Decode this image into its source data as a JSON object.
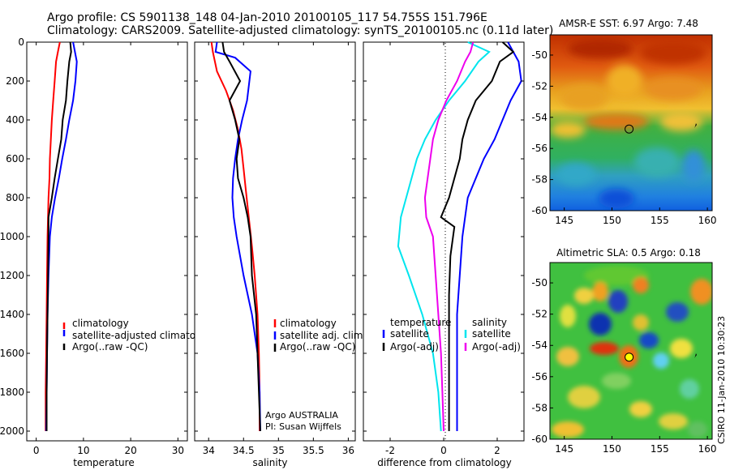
{
  "title_line1": "Argo profile: CS 5901138_148 04-Jan-2010 20100105_117 54.755S 151.796E",
  "title_line2": "Climatology: CARS2009. Satellite-adjusted climatology: synTS_20100105.nc (0.11d later)",
  "credit": "CSIRO 11-Jan-2010 10:30:23",
  "colors": {
    "climatology": "#ff0000",
    "satellite": "#0000ff",
    "argo": "#000000",
    "sal_satellite": "#00e5ee",
    "sal_argo": "#ee00ee"
  },
  "chart_data": [
    {
      "id": "temperature",
      "type": "line",
      "xlabel": "temperature",
      "xlim": [
        -2,
        32
      ],
      "ylim": [
        2050,
        0
      ],
      "xticks": [
        "0",
        "10",
        "20",
        "30"
      ],
      "yticks": [
        "0",
        "200",
        "400",
        "600",
        "800",
        "1000",
        "1200",
        "1400",
        "1600",
        "1800",
        "2000"
      ],
      "legend": [
        "climatology",
        "satellite-adjusted climatology",
        "Argo(..raw -QC)"
      ],
      "series": [
        {
          "name": "climatology",
          "color": "#ff0000",
          "x": [
            5.0,
            4.6,
            4.2,
            3.9,
            3.6,
            3.3,
            3.1,
            2.9,
            2.8,
            2.6,
            2.5,
            2.4,
            2.3,
            2.2,
            2.1,
            2.0,
            2.0
          ],
          "y": [
            0,
            50,
            100,
            200,
            300,
            400,
            500,
            600,
            700,
            800,
            900,
            1000,
            1200,
            1400,
            1600,
            1800,
            2000
          ]
        },
        {
          "name": "satellite-adjusted climatology",
          "color": "#0000ff",
          "x": [
            7.8,
            8.2,
            8.6,
            8.3,
            7.8,
            7.0,
            6.3,
            5.5,
            4.8,
            4.0,
            3.3,
            2.9,
            2.6,
            2.4,
            2.3,
            2.2,
            2.1
          ],
          "y": [
            0,
            50,
            100,
            200,
            300,
            400,
            500,
            600,
            700,
            800,
            900,
            1000,
            1200,
            1400,
            1600,
            1800,
            2000
          ]
        },
        {
          "name": "Argo(..raw -QC)",
          "color": "#000000",
          "x": [
            7.2,
            7.4,
            7.0,
            6.6,
            6.3,
            5.6,
            5.3,
            4.6,
            3.9,
            3.3,
            2.6,
            2.6,
            2.5,
            2.4,
            2.3,
            2.2,
            2.2
          ],
          "y": [
            0,
            50,
            100,
            200,
            300,
            400,
            500,
            600,
            700,
            800,
            900,
            1000,
            1200,
            1400,
            1600,
            1800,
            2000
          ]
        }
      ]
    },
    {
      "id": "salinity",
      "type": "line",
      "xlabel": "salinity",
      "xlim": [
        33.8,
        36.1
      ],
      "ylim": [
        2050,
        0
      ],
      "xticks": [
        "34",
        "34.5",
        "35",
        "35.5",
        "36"
      ],
      "legend": [
        "climatology",
        "satellite adj. clim.",
        "Argo(..raw -QC)"
      ],
      "annotation": [
        "Argo AUSTRALIA",
        "PI: Susan Wijffels"
      ],
      "series": [
        {
          "name": "climatology",
          "color": "#ff0000",
          "x": [
            34.04,
            34.06,
            34.12,
            34.25,
            34.35,
            34.42,
            34.47,
            34.5,
            34.53,
            34.56,
            34.59,
            34.62,
            34.66,
            34.7,
            34.72,
            34.73,
            34.73
          ],
          "y": [
            0,
            50,
            150,
            250,
            350,
            450,
            550,
            650,
            750,
            850,
            950,
            1050,
            1200,
            1400,
            1600,
            1800,
            2000
          ]
        },
        {
          "name": "satellite adj. clim.",
          "color": "#0000ff",
          "x": [
            34.12,
            34.1,
            34.38,
            34.6,
            34.55,
            34.48,
            34.42,
            34.38,
            34.35,
            34.34,
            34.36,
            34.4,
            34.5,
            34.62,
            34.7,
            34.73,
            34.74
          ],
          "y": [
            0,
            50,
            80,
            150,
            300,
            400,
            500,
            600,
            700,
            800,
            900,
            1000,
            1200,
            1400,
            1600,
            1800,
            2000
          ]
        },
        {
          "name": "Argo(..raw -QC)",
          "color": "#000000",
          "x": [
            34.2,
            34.22,
            34.3,
            34.45,
            34.3,
            34.38,
            34.44,
            34.4,
            34.42,
            34.5,
            34.56,
            34.6,
            34.62,
            34.68,
            34.7,
            34.72,
            34.74
          ],
          "y": [
            0,
            50,
            100,
            200,
            300,
            400,
            500,
            600,
            700,
            800,
            900,
            1000,
            1200,
            1400,
            1600,
            1800,
            2000
          ]
        }
      ]
    },
    {
      "id": "difference",
      "type": "line",
      "xlabel": "difference from climatology",
      "xlim": [
        -3,
        3
      ],
      "ylim": [
        2050,
        0
      ],
      "xticks": [
        "-2",
        "0",
        "2"
      ],
      "legend_left_title": "temperature",
      "legend_right_title": "salinity",
      "legend_left": [
        "satellite",
        "Argo(-adj)"
      ],
      "legend_right": [
        "satellite",
        "Argo(-adj)"
      ],
      "series": [
        {
          "name": "temperature satellite",
          "color": "#0000ff",
          "x": [
            2.4,
            2.6,
            2.8,
            2.9,
            2.5,
            2.2,
            1.9,
            1.5,
            1.2,
            0.9,
            0.8,
            0.7,
            0.6,
            0.5,
            0.5,
            0.5,
            0.5
          ],
          "y": [
            0,
            50,
            100,
            200,
            300,
            400,
            500,
            600,
            700,
            800,
            900,
            1000,
            1200,
            1400,
            1600,
            1800,
            2000
          ]
        },
        {
          "name": "temperature Argo(-adj)",
          "color": "#000000",
          "x": [
            2.2,
            2.6,
            2.1,
            1.8,
            1.2,
            0.9,
            0.7,
            0.6,
            0.4,
            0.2,
            -0.1,
            0.4,
            0.25,
            0.2,
            0.2,
            0.2,
            0.2
          ],
          "y": [
            0,
            50,
            100,
            200,
            300,
            400,
            500,
            600,
            700,
            800,
            900,
            950,
            1100,
            1300,
            1500,
            1800,
            2000
          ]
        },
        {
          "name": "salinity satellite",
          "color": "#00e5ee",
          "x": [
            0.9,
            1.7,
            1.3,
            0.8,
            0.2,
            -0.3,
            -0.7,
            -1.0,
            -1.2,
            -1.4,
            -1.6,
            -1.7,
            -1.3,
            -0.8,
            -0.4,
            -0.2,
            -0.1
          ],
          "y": [
            0,
            50,
            100,
            200,
            300,
            400,
            500,
            600,
            700,
            800,
            900,
            1050,
            1200,
            1400,
            1600,
            1800,
            2000
          ]
        },
        {
          "name": "salinity Argo(-adj)",
          "color": "#ee00ee",
          "x": [
            1.1,
            1.0,
            0.8,
            0.5,
            0.1,
            -0.2,
            -0.4,
            -0.5,
            -0.6,
            -0.7,
            -0.65,
            -0.4,
            -0.3,
            -0.2,
            -0.1,
            -0.05,
            0.0
          ],
          "y": [
            0,
            50,
            100,
            200,
            300,
            400,
            500,
            600,
            700,
            800,
            900,
            1000,
            1200,
            1400,
            1600,
            1800,
            2000
          ]
        }
      ]
    },
    {
      "id": "amsre-sst",
      "type": "heatmap",
      "title": "AMSR-E SST: 6.97 Argo: 7.48",
      "xlim": [
        143.5,
        160.5
      ],
      "ylim": [
        -60,
        -48.7
      ],
      "xticks": [
        "145",
        "150",
        "155",
        "160"
      ],
      "yticks": [
        "-50",
        "-52",
        "-54",
        "-56",
        "-58",
        "-60"
      ],
      "marker": {
        "lon": 151.8,
        "lat": -54.75,
        "fill": "none"
      }
    },
    {
      "id": "altimetric-sla",
      "type": "heatmap",
      "title": "Altimetric SLA: 0.5 Argo: 0.18",
      "xlim": [
        143.5,
        160.5
      ],
      "ylim": [
        -60,
        -48.7
      ],
      "xticks": [
        "145",
        "150",
        "155",
        "160"
      ],
      "yticks": [
        "-50",
        "-52",
        "-54",
        "-56",
        "-58",
        "-60"
      ],
      "marker": {
        "lon": 151.8,
        "lat": -54.75,
        "fill": "#ffff00"
      }
    }
  ]
}
